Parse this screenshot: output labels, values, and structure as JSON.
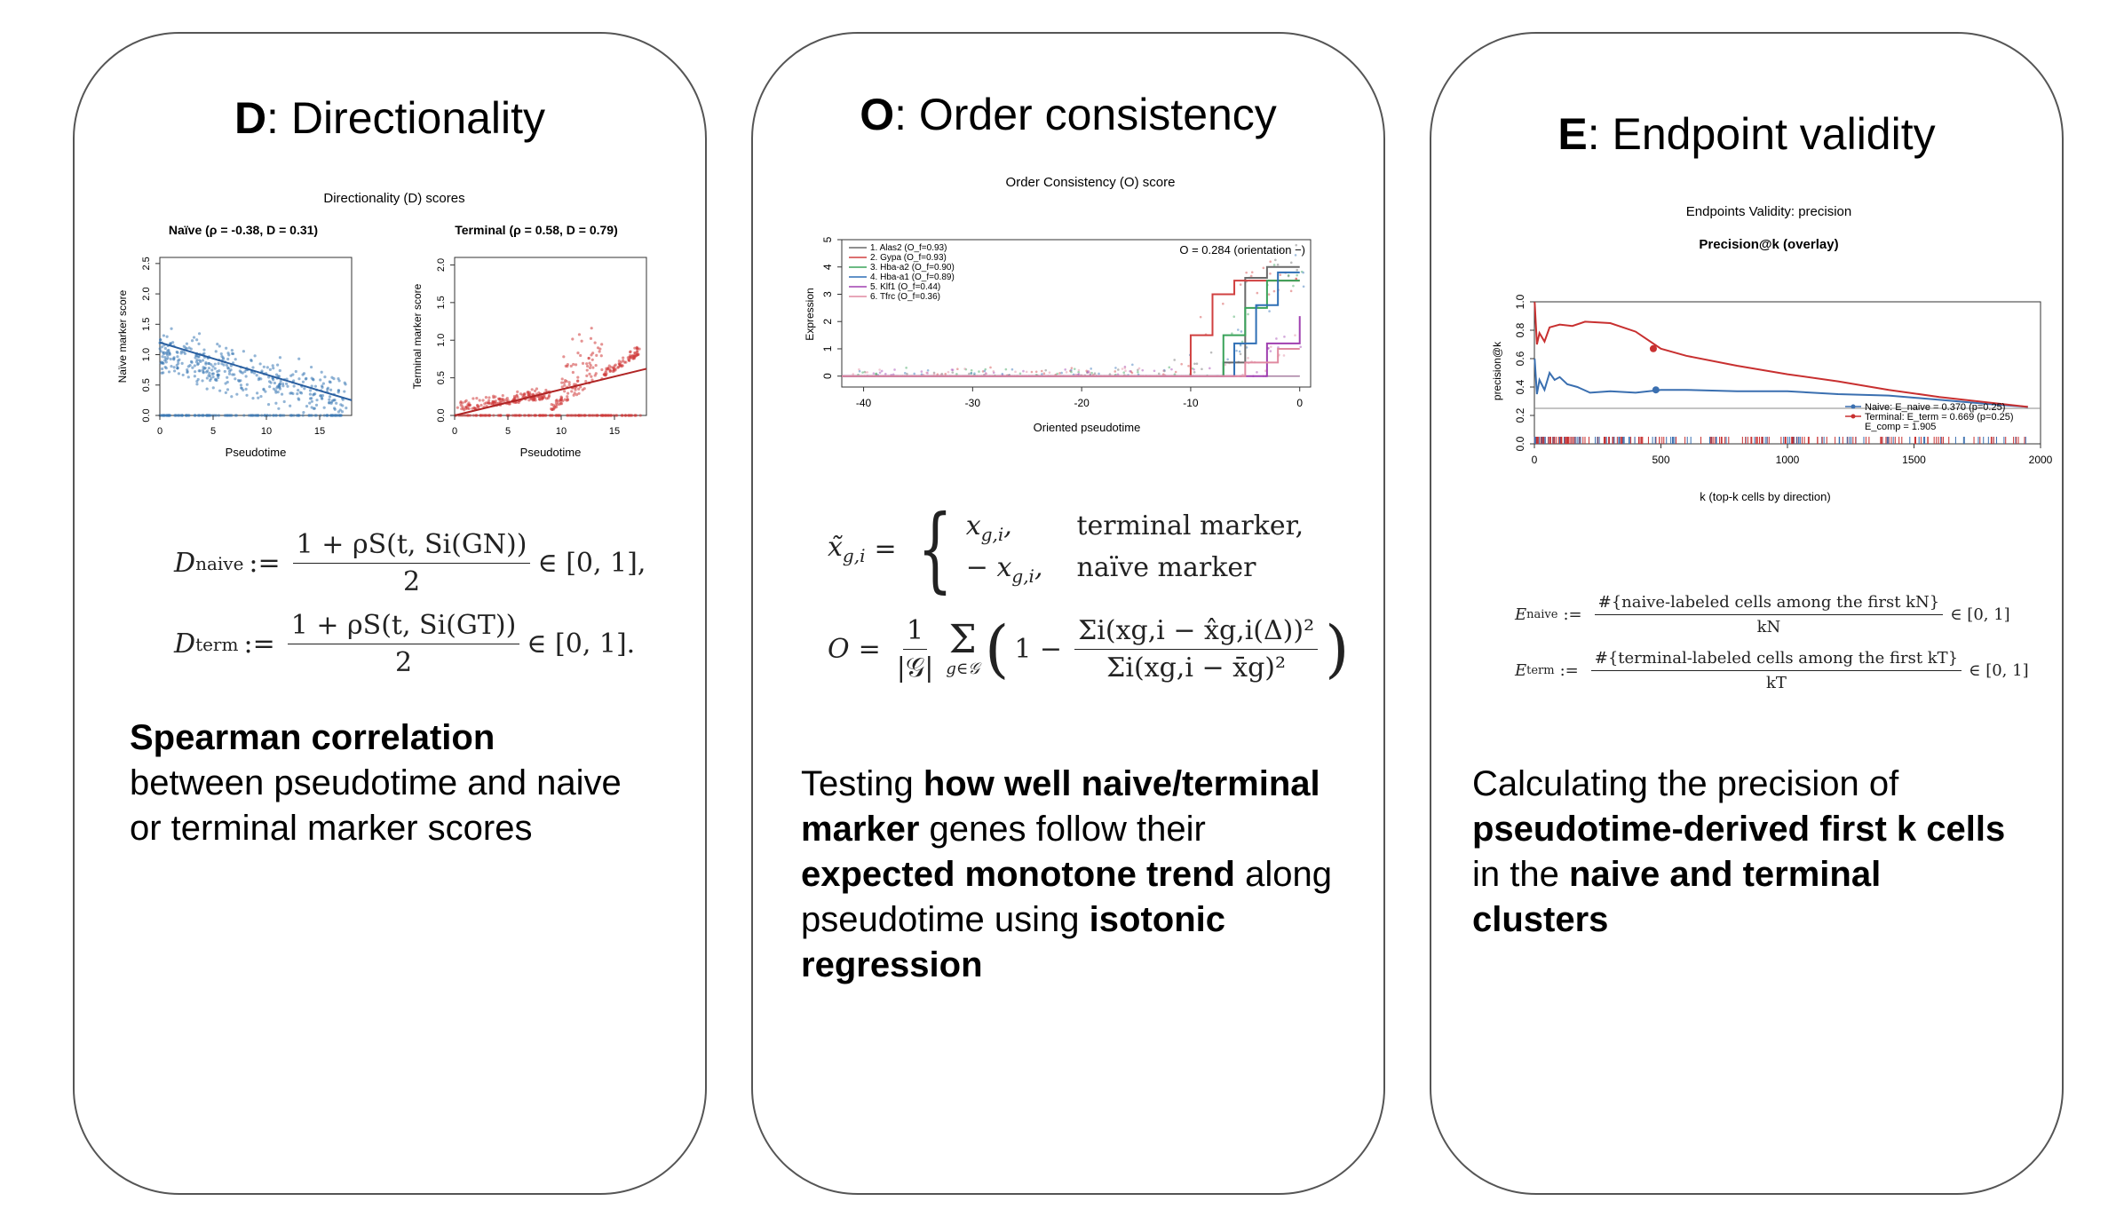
{
  "panels": [
    {
      "letter": "D",
      "title": ": Directionality",
      "figure": {
        "title": "Directionality (D) scores",
        "left": {
          "title": "Naïve (ρ = -0.38, D = 0.31)",
          "ylabel": "Naïve marker score",
          "xlabel": "Pseudotime"
        },
        "right": {
          "title": "Terminal (ρ = 0.58, D = 0.79)",
          "ylabel": "Terminal marker score",
          "xlabel": "Pseudotime"
        }
      },
      "equations": {
        "line1_lhs": "D",
        "line1_sub": "naive",
        "line1_num": "1 + ρS(t,  Si(GN))",
        "line1_den": "2",
        "line1_rhs": "∈ [0, 1],",
        "line2_lhs": "D",
        "line2_sub": "term",
        "line2_num": "1 + ρS(t,  Si(GT))",
        "line2_den": "2",
        "line2_rhs": "∈ [0, 1]."
      },
      "desc": {
        "b1": "Spearman correlation",
        "t1": " between pseudotime and naive or terminal marker scores"
      }
    },
    {
      "letter": "O",
      "title": ": Order consistency",
      "figure": {
        "title": "Order Consistency (O) score",
        "annotation": "O = 0.284  (orientation −)",
        "ylabel": "Expression",
        "xlabel": "Oriented pseudotime",
        "legend": [
          "1. Alas2 (O_f=0.93)",
          "2. Gypa (O_f=0.93)",
          "3. Hba-a2 (O_f=0.90)",
          "4. Hba-a1 (O_f=0.89)",
          "5. Klf1 (O_f=0.44)",
          "6. Tfrc (O_f=0.36)"
        ]
      },
      "equations": {
        "case1_expr": "x",
        "case1_sub": "g,i",
        "case1_text": "terminal marker,",
        "case2_expr": "− x",
        "case2_sub": "g,i",
        "case2_text": "naïve marker",
        "o_num": "Σi(xg,i − x̂g,i(Δ))²",
        "o_den": "Σi(xg,i − x̄g)²"
      },
      "desc": {
        "t1": "Testing ",
        "b1": "how well naive/terminal marker",
        "t2": " genes follow their ",
        "b2": "expected monotone trend",
        "t3": " along pseudotime using ",
        "b3": "isotonic regression"
      }
    },
    {
      "letter": "E",
      "title": ": Endpoint validity",
      "figure": {
        "title": "Endpoints Validity: precision",
        "subtitle": "Precision@k (overlay)",
        "ylabel": "precision@k",
        "xlabel": "k (top-k cells by direction)",
        "legend": [
          "Naive: E_naive = 0.370  (p=0.25)",
          "Terminal: E_term  = 0.669  (p=0.25)",
          "E_comp = 1.905"
        ]
      },
      "equations": {
        "naive_num": "#{naive-labeled cells among the first kN}",
        "naive_den": "kN",
        "term_num": "#{terminal-labeled cells among the first kT}",
        "term_den": "kT",
        "rhs": "∈ [0, 1]"
      },
      "desc": {
        "t1": "Calculating the precision of ",
        "b1": "pseudotime-derived first k cells",
        "t2": " in the ",
        "b2": "naive and terminal clusters"
      }
    }
  ],
  "chart_data": [
    {
      "type": "scatter",
      "title": "Naïve (ρ = -0.38, D = 0.31)",
      "xlabel": "Pseudotime",
      "ylabel": "Naïve marker score",
      "xlim": [
        0,
        18
      ],
      "ylim": [
        0,
        2.6
      ],
      "xticks": [
        "0",
        "5",
        "10",
        "15"
      ],
      "yticks": [
        "0.0",
        "0.5",
        "1.0",
        "1.5",
        "2.0",
        "2.5"
      ],
      "trend": {
        "x": [
          0,
          18
        ],
        "y": [
          1.2,
          0.25
        ]
      },
      "color": "#3a78b5"
    },
    {
      "type": "scatter",
      "title": "Terminal (ρ = 0.58, D = 0.79)",
      "xlabel": "Pseudotime",
      "ylabel": "Terminal marker score",
      "xlim": [
        0,
        18
      ],
      "ylim": [
        0,
        2.1
      ],
      "xticks": [
        "0",
        "5",
        "10",
        "15"
      ],
      "yticks": [
        "0.0",
        "0.5",
        "1.0",
        "1.5",
        "2.0"
      ],
      "trend": {
        "x": [
          0,
          18
        ],
        "y": [
          -0.05,
          0.62
        ]
      },
      "color": "#d03a3a"
    },
    {
      "type": "line",
      "title": "Order Consistency (O) score",
      "xlabel": "Oriented pseudotime",
      "ylabel": "Expression",
      "xlim": [
        -42,
        1
      ],
      "ylim": [
        -0.4,
        5
      ],
      "xticks": [
        "-40",
        "-30",
        "-20",
        "-10",
        "0"
      ],
      "yticks": [
        "0",
        "1",
        "2",
        "3",
        "4",
        "5"
      ],
      "series": [
        {
          "name": "1. Alas2 (O_f=0.93)",
          "color": "#6a6a6a",
          "x": [
            -42,
            -10,
            -7,
            -5,
            -3,
            0
          ],
          "y": [
            0,
            0,
            0.5,
            3.6,
            4.0,
            4.0
          ]
        },
        {
          "name": "2. Gypa (O_f=0.93)",
          "color": "#d04040",
          "x": [
            -42,
            -12,
            -10,
            -8,
            -6,
            0
          ],
          "y": [
            0,
            0,
            1.5,
            3.0,
            3.5,
            3.5
          ]
        },
        {
          "name": "3. Hba-a2 (O_f=0.90)",
          "color": "#3aa35a",
          "x": [
            -42,
            -9,
            -7,
            -5,
            -3,
            0
          ],
          "y": [
            0,
            0,
            1.5,
            2.5,
            3.5,
            3.5
          ]
        },
        {
          "name": "4. Hba-a1 (O_f=0.89)",
          "color": "#2f6fb5",
          "x": [
            -42,
            -8,
            -6,
            -4,
            -2,
            0
          ],
          "y": [
            0,
            0,
            1.2,
            2.6,
            3.8,
            3.8
          ]
        },
        {
          "name": "5. Klf1 (O_f=0.44)",
          "color": "#a040b0",
          "x": [
            -42,
            -6,
            -3,
            0
          ],
          "y": [
            0,
            0,
            1.2,
            2.2
          ]
        },
        {
          "name": "6. Tfrc (O_f=0.36)",
          "color": "#e08aa0",
          "x": [
            -42,
            -5,
            -2,
            0
          ],
          "y": [
            0,
            0.5,
            1.0,
            1.0
          ]
        }
      ]
    },
    {
      "type": "line",
      "title": "Precision@k (overlay)",
      "xlabel": "k (top-k cells by direction)",
      "ylabel": "precision@k",
      "xlim": [
        0,
        2000
      ],
      "ylim": [
        0,
        1
      ],
      "xticks": [
        "0",
        "500",
        "1000",
        "1500",
        "2000"
      ],
      "yticks": [
        "0.0",
        "0.2",
        "0.4",
        "0.6",
        "0.8",
        "1.0"
      ],
      "series": [
        {
          "name": "Naive: E_naive = 0.370  (p=0.25)",
          "color": "#3a6fb0",
          "x": [
            1,
            10,
            20,
            40,
            60,
            80,
            100,
            130,
            170,
            220,
            300,
            400,
            500,
            600,
            800,
            1000,
            1200,
            1400,
            1600,
            1800,
            1950
          ],
          "y": [
            0.6,
            0.35,
            0.45,
            0.38,
            0.5,
            0.45,
            0.47,
            0.42,
            0.4,
            0.36,
            0.37,
            0.36,
            0.38,
            0.38,
            0.37,
            0.37,
            0.35,
            0.34,
            0.31,
            0.28,
            0.26
          ]
        },
        {
          "name": "Terminal: E_term  = 0.669  (p=0.25)",
          "color": "#c83030",
          "x": [
            1,
            10,
            20,
            40,
            60,
            100,
            150,
            200,
            300,
            400,
            500,
            600,
            800,
            1000,
            1200,
            1400,
            1600,
            1800,
            1950
          ],
          "y": [
            1.0,
            0.7,
            0.78,
            0.72,
            0.82,
            0.84,
            0.83,
            0.86,
            0.85,
            0.79,
            0.67,
            0.62,
            0.55,
            0.49,
            0.44,
            0.38,
            0.33,
            0.29,
            0.26
          ]
        }
      ],
      "annotation": "E_comp = 1.905"
    }
  ]
}
